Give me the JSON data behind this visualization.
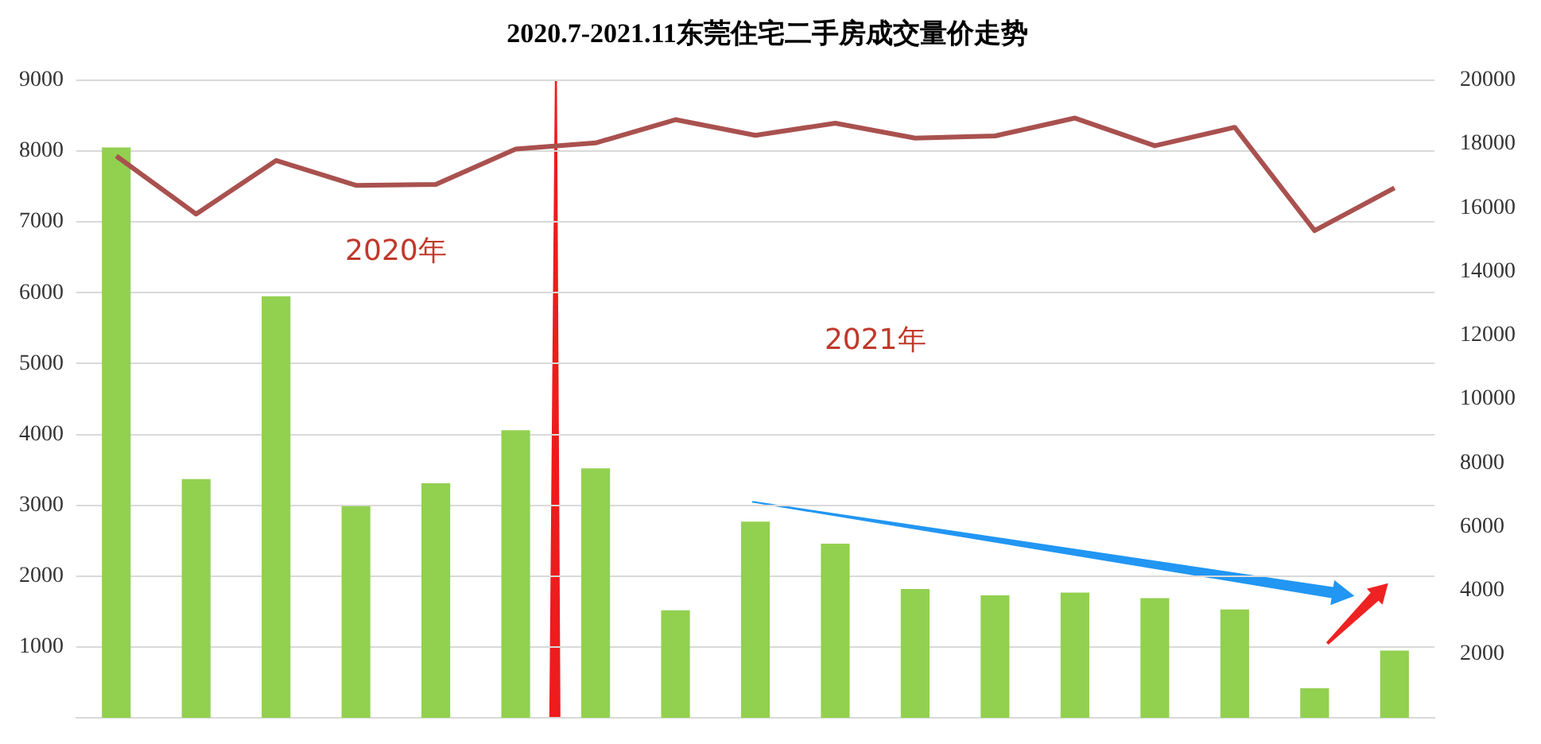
{
  "chart_data": {
    "type": "bar",
    "title": "2020.7-2021.11东莞住宅二手房成交量价走势",
    "categories": [
      null,
      null,
      null,
      null,
      null,
      null,
      null,
      null,
      null,
      null,
      null,
      null,
      null,
      null,
      null,
      null,
      null
    ],
    "series": [
      {
        "color": "#92d050",
        "values": [
          8050,
          3370,
          5950,
          2990,
          3310,
          4060,
          3520,
          1520,
          2770,
          2460,
          1820,
          1730,
          1770,
          1690,
          1530,
          420,
          950
        ]
      },
      {
        "type": "line",
        "axis": "y2",
        "color": "#a9514f",
        "values": [
          17620,
          15800,
          17480,
          16700,
          16730,
          17840,
          18030,
          18760,
          18270,
          18650,
          18180,
          18250,
          18810,
          17940,
          18520,
          15280,
          16620
        ]
      }
    ],
    "ylim": [
      0,
      9000
    ],
    "yticks": [
      1000,
      2000,
      3000,
      4000,
      5000,
      6000,
      7000,
      8000,
      9000
    ],
    "y2lim": [
      0,
      20000
    ],
    "y2ticks": [
      2000,
      4000,
      6000,
      8000,
      10000,
      12000,
      14000,
      16000,
      18000,
      20000
    ],
    "grid": "y",
    "legend": false,
    "marker": "none",
    "line_style": "solid",
    "tick_labels": "y",
    "annotations": [
      "2020年",
      "2021年"
    ]
  }
}
